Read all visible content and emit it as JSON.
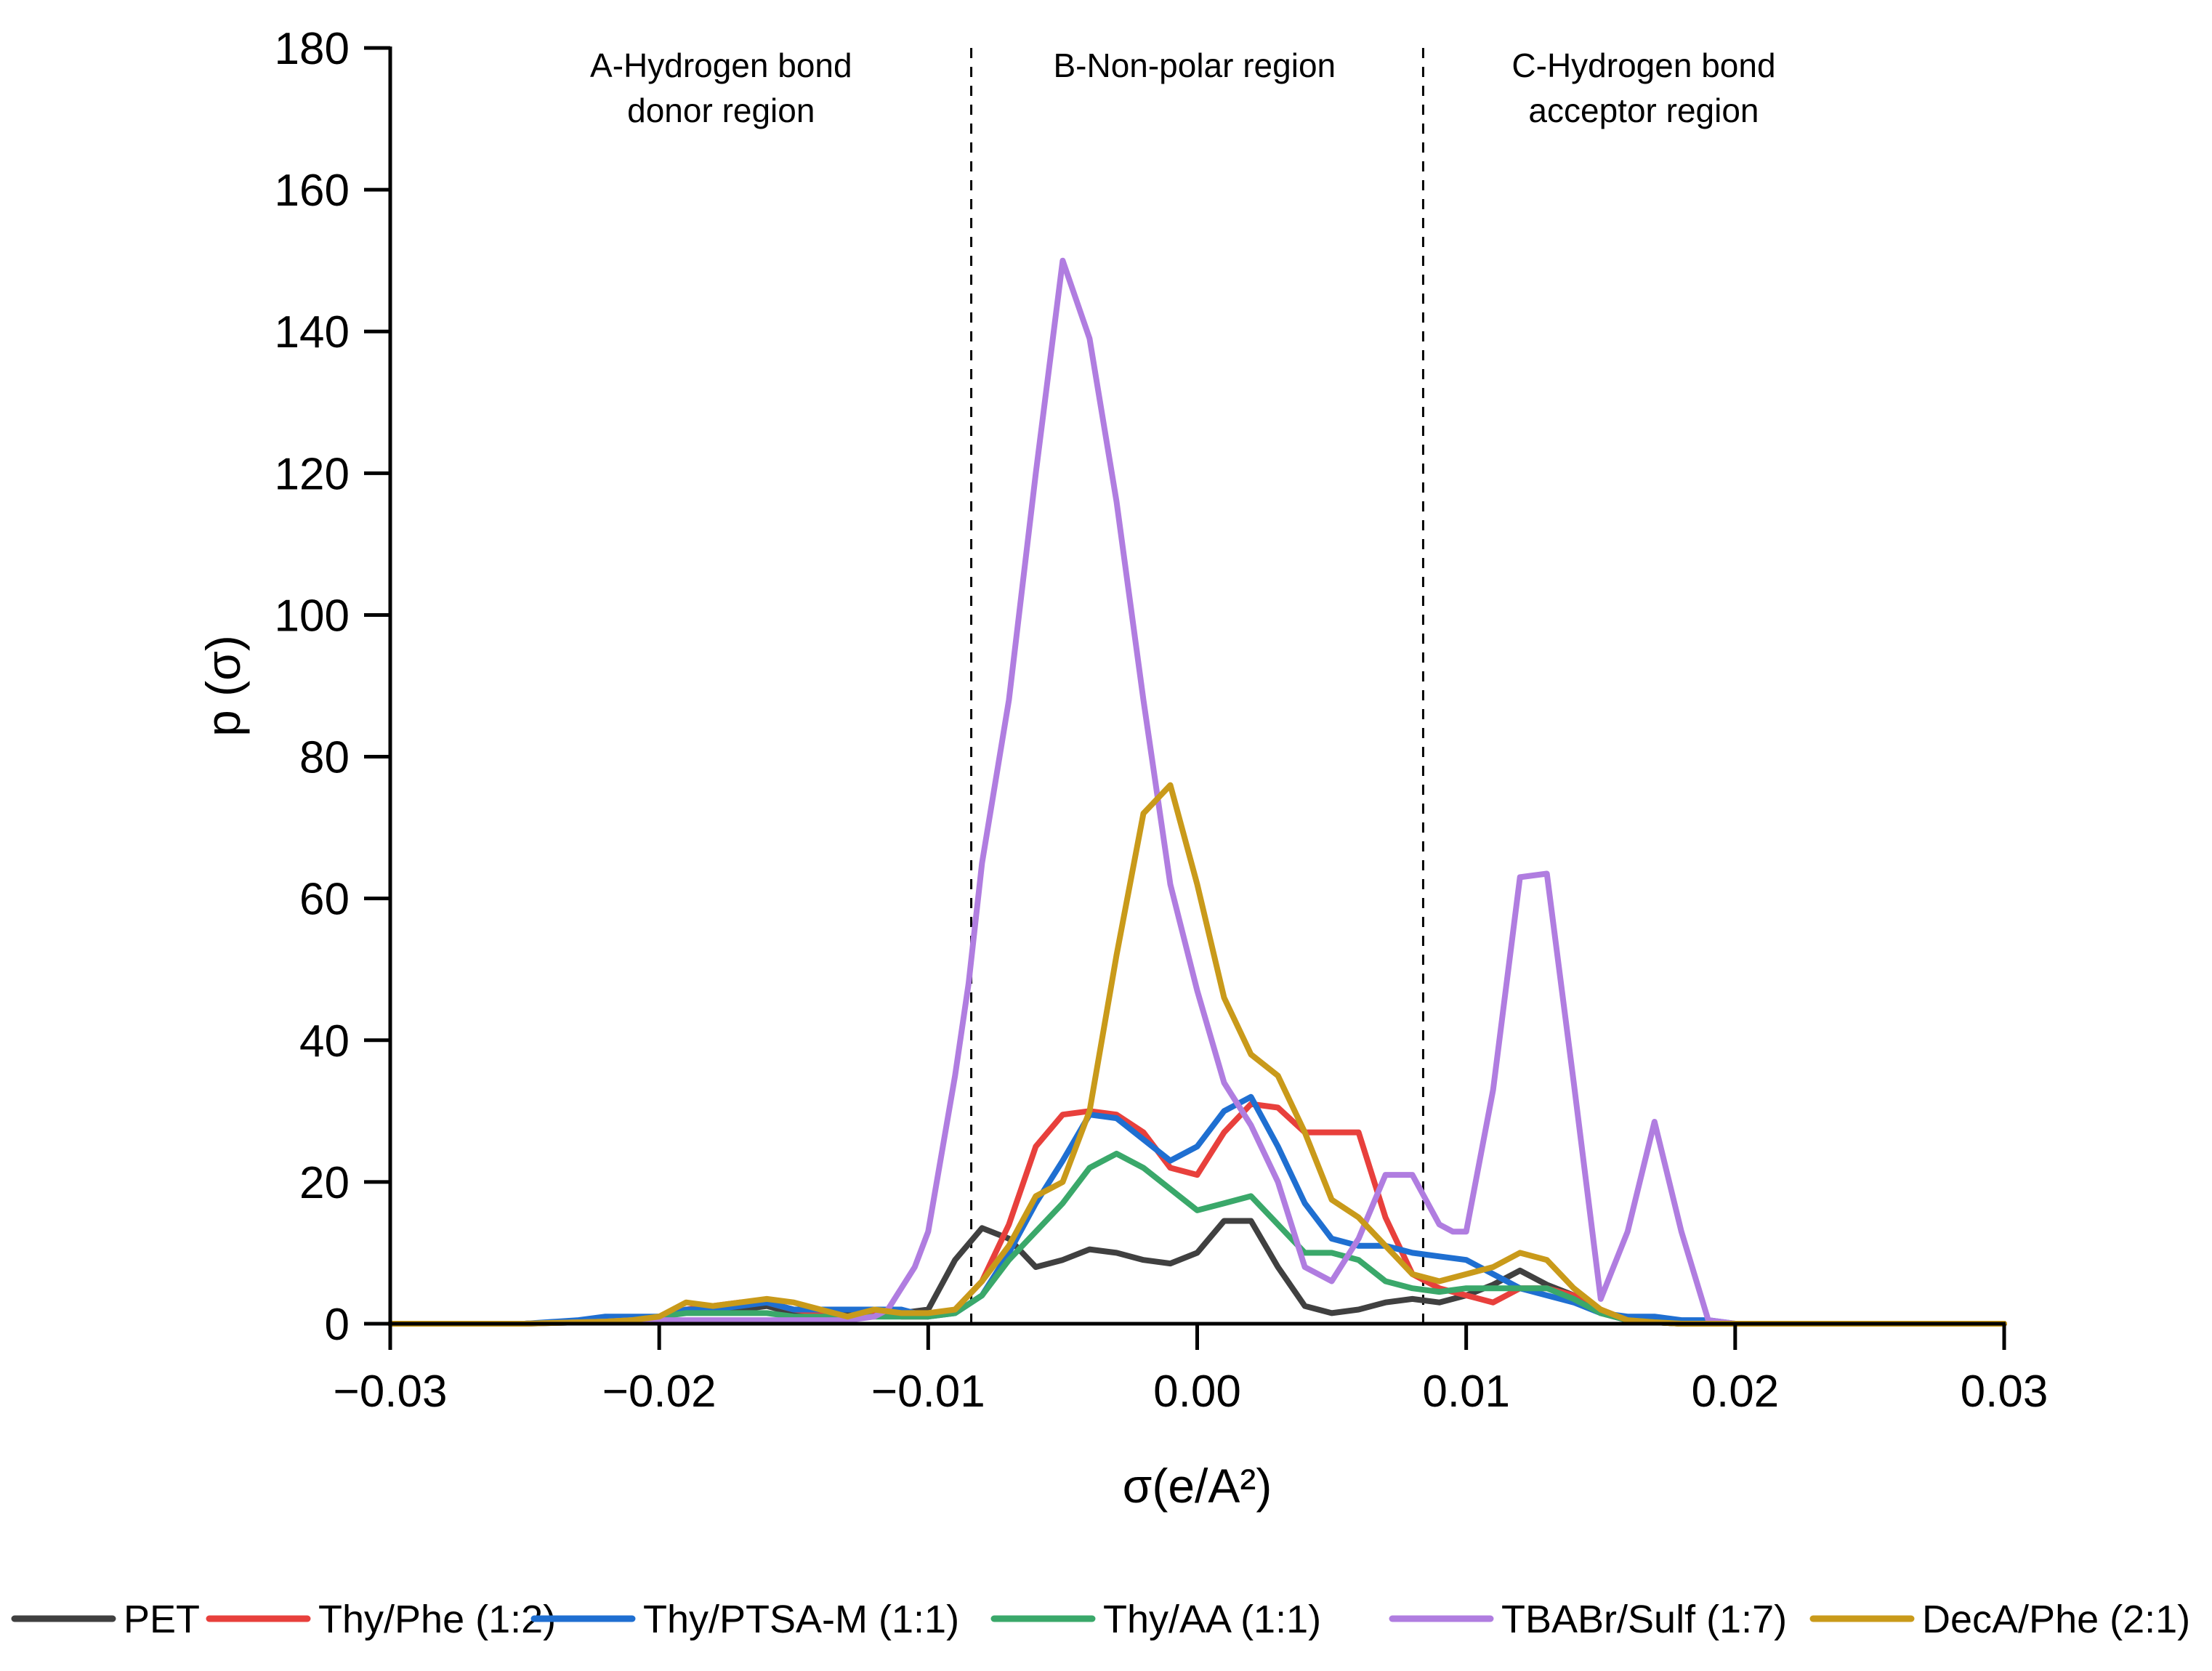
{
  "chart_data": {
    "type": "line",
    "title": "",
    "xlabel": "σ(e/A²)",
    "ylabel": "p (σ)",
    "xlim": [
      -0.03,
      0.03
    ],
    "ylim": [
      0,
      180
    ],
    "x_ticks": [
      -0.03,
      -0.02,
      -0.01,
      0.0,
      0.01,
      0.02,
      0.03
    ],
    "x_tick_labels": [
      "−0.03",
      "−0.02",
      "−0.01",
      "0.00",
      "0.01",
      "0.02",
      "0.03"
    ],
    "y_ticks": [
      0,
      20,
      40,
      60,
      80,
      100,
      120,
      140,
      160,
      180
    ],
    "y_tick_labels": [
      "0",
      "20",
      "40",
      "60",
      "80",
      "100",
      "120",
      "140",
      "160",
      "180"
    ],
    "grid": false,
    "legend_position": "bottom",
    "regions": [
      {
        "label_lines": [
          "A-Hydrogen bond",
          "donor region"
        ],
        "x_center": -0.0177
      },
      {
        "label_lines": [
          "B-Non-polar region"
        ],
        "x_center": -0.0001
      },
      {
        "label_lines": [
          "C-Hydrogen bond",
          "acceptor region"
        ],
        "x_center": 0.0166
      }
    ],
    "dividers": [
      -0.0084,
      0.0084
    ],
    "series": [
      {
        "name": "PET",
        "color": "#404040",
        "x": [
          -0.03,
          -0.025,
          -0.022,
          -0.021,
          -0.02,
          -0.019,
          -0.018,
          -0.017,
          -0.016,
          -0.015,
          -0.014,
          -0.013,
          -0.012,
          -0.011,
          -0.01,
          -0.009,
          -0.008,
          -0.007,
          -0.006,
          -0.005,
          -0.004,
          -0.003,
          -0.002,
          -0.001,
          0.0,
          0.001,
          0.002,
          0.003,
          0.004,
          0.005,
          0.006,
          0.007,
          0.008,
          0.009,
          0.01,
          0.011,
          0.012,
          0.013,
          0.014,
          0.015,
          0.016,
          0.017,
          0.018,
          0.019,
          0.02,
          0.03
        ],
        "y": [
          0,
          0,
          0.5,
          0.8,
          1,
          2,
          2,
          2,
          2.5,
          1.5,
          1.5,
          1.5,
          1.5,
          1.5,
          2,
          9,
          13.5,
          12,
          8,
          9,
          10.5,
          10,
          9,
          8.5,
          10,
          14.5,
          14.5,
          8,
          2.5,
          1.5,
          2,
          3,
          3.5,
          3,
          4,
          5.5,
          7.5,
          5.5,
          4,
          1.5,
          0.5,
          0.2,
          0,
          0,
          0,
          0
        ]
      },
      {
        "name": "Thy/Phe (1:2)",
        "color": "#e8403c",
        "x": [
          -0.03,
          -0.025,
          -0.022,
          -0.021,
          -0.02,
          -0.019,
          -0.018,
          -0.017,
          -0.016,
          -0.015,
          -0.014,
          -0.013,
          -0.012,
          -0.011,
          -0.01,
          -0.009,
          -0.008,
          -0.007,
          -0.006,
          -0.005,
          -0.004,
          -0.003,
          -0.002,
          -0.001,
          0.0,
          0.001,
          0.002,
          0.003,
          0.004,
          0.005,
          0.006,
          0.007,
          0.008,
          0.009,
          0.01,
          0.011,
          0.012,
          0.013,
          0.014,
          0.015,
          0.016,
          0.017,
          0.018,
          0.019,
          0.02,
          0.03
        ],
        "y": [
          0,
          0,
          0.5,
          0.8,
          1,
          2,
          2.5,
          3,
          3,
          2,
          1.5,
          1,
          1.5,
          1,
          1,
          2,
          6,
          14,
          25,
          29.5,
          30,
          29.5,
          27,
          22,
          21,
          27,
          31,
          30.5,
          27,
          27,
          27,
          15,
          7,
          5,
          4,
          3,
          5,
          5,
          4,
          2,
          0.5,
          0.2,
          0,
          0,
          0,
          0
        ]
      },
      {
        "name": "Thy/PTSA-M (1:1)",
        "color": "#1f6fd1",
        "x": [
          -0.03,
          -0.025,
          -0.023,
          -0.022,
          -0.021,
          -0.02,
          -0.019,
          -0.018,
          -0.017,
          -0.016,
          -0.015,
          -0.014,
          -0.013,
          -0.012,
          -0.011,
          -0.01,
          -0.009,
          -0.008,
          -0.007,
          -0.006,
          -0.005,
          -0.004,
          -0.003,
          -0.002,
          -0.001,
          0.0,
          0.001,
          0.002,
          0.003,
          0.004,
          0.005,
          0.006,
          0.007,
          0.008,
          0.009,
          0.01,
          0.011,
          0.012,
          0.013,
          0.014,
          0.015,
          0.016,
          0.017,
          0.018,
          0.019,
          0.02,
          0.03
        ],
        "y": [
          0,
          0,
          0.5,
          1,
          1,
          1,
          2,
          2,
          2.5,
          3,
          2,
          2,
          2,
          2,
          2,
          1,
          1.5,
          4,
          10,
          17,
          23,
          29.5,
          29,
          26,
          23,
          25,
          30,
          32,
          25,
          17,
          12,
          11,
          11,
          10,
          9.5,
          9,
          7,
          5,
          4,
          3,
          1.5,
          1,
          1,
          0.5,
          0.5,
          0,
          0
        ]
      },
      {
        "name": "Thy/AA (1:1)",
        "color": "#3aa86a",
        "x": [
          -0.03,
          -0.025,
          -0.022,
          -0.021,
          -0.02,
          -0.019,
          -0.018,
          -0.017,
          -0.016,
          -0.015,
          -0.014,
          -0.013,
          -0.012,
          -0.011,
          -0.01,
          -0.009,
          -0.008,
          -0.007,
          -0.006,
          -0.005,
          -0.004,
          -0.003,
          -0.002,
          -0.001,
          0.0,
          0.001,
          0.002,
          0.003,
          0.004,
          0.005,
          0.006,
          0.007,
          0.008,
          0.009,
          0.01,
          0.011,
          0.012,
          0.013,
          0.014,
          0.015,
          0.016,
          0.017,
          0.018,
          0.019,
          0.02,
          0.03
        ],
        "y": [
          0,
          0,
          0.3,
          0.5,
          1,
          1.5,
          1.5,
          1.5,
          1.5,
          1,
          1,
          1,
          1,
          1,
          1,
          1.5,
          4,
          9,
          13,
          17,
          22,
          24,
          22,
          19,
          16,
          17,
          18,
          14,
          10,
          10,
          9,
          6,
          5,
          4.5,
          5,
          5,
          5,
          5,
          3.5,
          1.5,
          0.5,
          0.2,
          0,
          0,
          0,
          0
        ]
      },
      {
        "name": "TBABr/Sulf (1:7)",
        "color": "#b07de0",
        "x": [
          -0.03,
          -0.025,
          -0.022,
          -0.021,
          -0.02,
          -0.019,
          -0.018,
          -0.017,
          -0.016,
          -0.015,
          -0.014,
          -0.013,
          -0.012,
          -0.0115,
          -0.011,
          -0.0105,
          -0.01,
          -0.009,
          -0.0085,
          -0.008,
          -0.007,
          -0.006,
          -0.005,
          -0.004,
          -0.003,
          -0.002,
          -0.001,
          0.0,
          0.001,
          0.002,
          0.003,
          0.004,
          0.005,
          0.006,
          0.007,
          0.0075,
          0.008,
          0.009,
          0.0095,
          0.01,
          0.011,
          0.012,
          0.013,
          0.014,
          0.015,
          0.016,
          0.017,
          0.018,
          0.019,
          0.02,
          0.03
        ],
        "y": [
          0,
          0,
          0.3,
          0.5,
          0.5,
          0.5,
          0.5,
          0.5,
          0.5,
          0.5,
          0.5,
          0.5,
          1,
          2,
          5,
          8,
          13,
          35,
          48,
          65,
          88,
          120,
          150,
          139,
          116,
          88,
          62,
          47,
          34,
          28,
          20,
          8,
          6,
          12,
          21,
          21,
          21,
          14,
          13,
          13,
          33,
          63,
          63.5,
          34,
          3.5,
          13,
          28.5,
          13,
          0.5,
          0,
          0
        ]
      },
      {
        "name": "DecA/Phe (2:1)",
        "color": "#c99a1a",
        "x": [
          -0.03,
          -0.025,
          -0.022,
          -0.021,
          -0.02,
          -0.019,
          -0.018,
          -0.017,
          -0.016,
          -0.015,
          -0.014,
          -0.013,
          -0.012,
          -0.011,
          -0.01,
          -0.009,
          -0.008,
          -0.007,
          -0.006,
          -0.005,
          -0.004,
          -0.003,
          -0.002,
          -0.001,
          0.0,
          0.001,
          0.002,
          0.003,
          0.004,
          0.005,
          0.006,
          0.007,
          0.008,
          0.009,
          0.01,
          0.011,
          0.012,
          0.013,
          0.014,
          0.015,
          0.016,
          0.017,
          0.018,
          0.019,
          0.02,
          0.03
        ],
        "y": [
          0,
          0,
          0.3,
          0.5,
          1,
          3,
          2.5,
          3,
          3.5,
          3,
          2,
          1,
          2,
          1.5,
          1.5,
          2,
          6,
          11,
          18,
          20,
          30,
          52,
          72,
          76,
          62,
          46,
          38,
          35,
          27,
          17.5,
          15,
          11,
          7,
          6,
          7,
          8,
          10,
          9,
          5,
          2,
          0.5,
          0.2,
          0,
          0,
          0,
          0
        ]
      }
    ]
  }
}
